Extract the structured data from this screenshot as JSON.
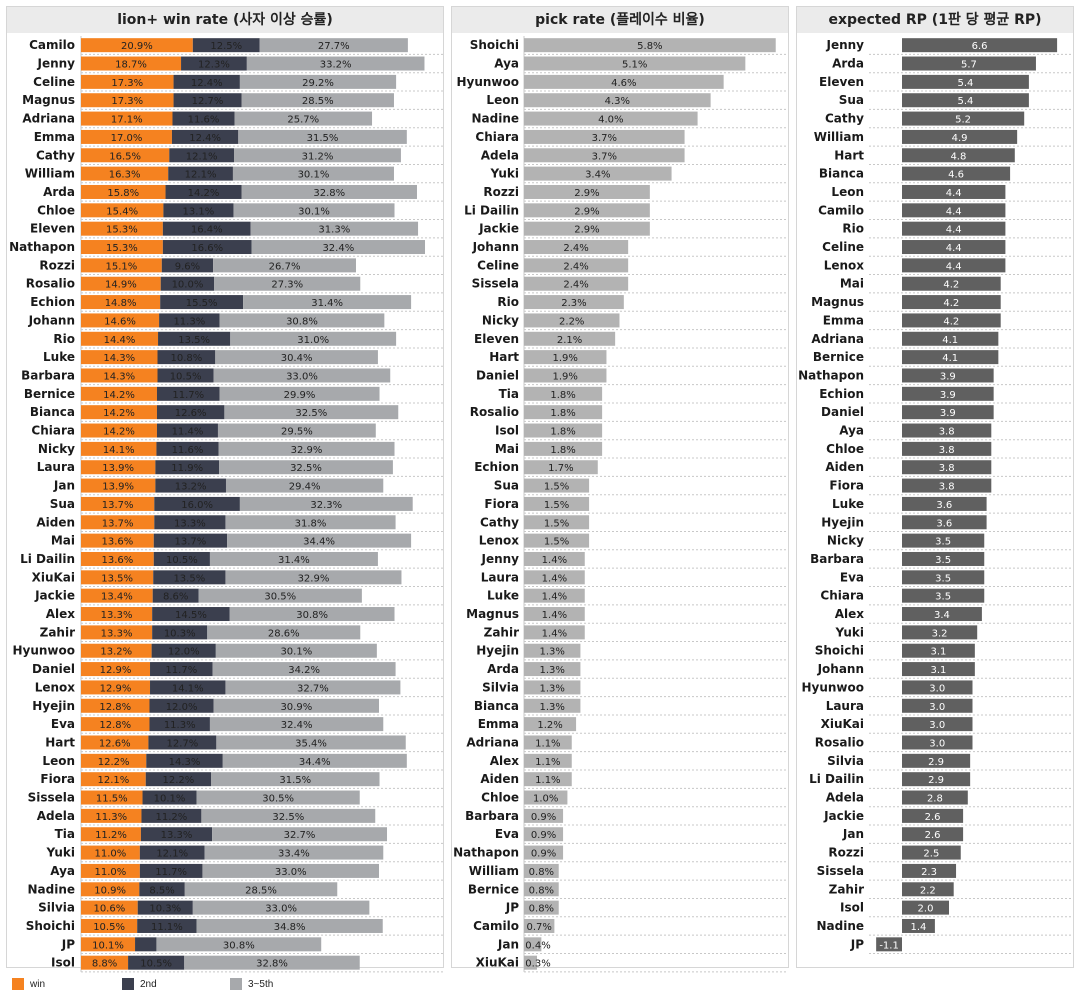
{
  "colors": {
    "win": "#f58220",
    "second": "#3b3f4e",
    "third": "#a7a9ac",
    "pick": "#b3b3b3",
    "rp": "#606060"
  },
  "legend": [
    {
      "label": "win",
      "color": "#f58220"
    },
    {
      "label": "2nd",
      "color": "#3b3f4e"
    },
    {
      "label": "3~5th",
      "color": "#a7a9ac"
    }
  ],
  "chart_data": [
    {
      "type": "bar",
      "stacked": true,
      "orientation": "horizontal",
      "title": "lion+ win rate (사자 이상 승률)",
      "series_names": [
        "win",
        "2nd",
        "3~5th"
      ],
      "rows": [
        {
          "name": "Camilo",
          "win": "20.9%",
          "second": "12.5%",
          "third": "27.7%"
        },
        {
          "name": "Jenny",
          "win": "18.7%",
          "second": "12.3%",
          "third": "33.2%"
        },
        {
          "name": "Celine",
          "win": "17.3%",
          "second": "12.4%",
          "third": "29.2%"
        },
        {
          "name": "Magnus",
          "win": "17.3%",
          "second": "12.7%",
          "third": "28.5%"
        },
        {
          "name": "Adriana",
          "win": "17.1%",
          "second": "11.6%",
          "third": "25.7%"
        },
        {
          "name": "Emma",
          "win": "17.0%",
          "second": "12.4%",
          "third": "31.5%"
        },
        {
          "name": "Cathy",
          "win": "16.5%",
          "second": "12.1%",
          "third": "31.2%"
        },
        {
          "name": "William",
          "win": "16.3%",
          "second": "12.1%",
          "third": "30.1%"
        },
        {
          "name": "Arda",
          "win": "15.8%",
          "second": "14.2%",
          "third": "32.8%"
        },
        {
          "name": "Chloe",
          "win": "15.4%",
          "second": "13.1%",
          "third": "30.1%"
        },
        {
          "name": "Eleven",
          "win": "15.3%",
          "second": "16.4%",
          "third": "31.3%"
        },
        {
          "name": "Nathapon",
          "win": "15.3%",
          "second": "16.6%",
          "third": "32.4%"
        },
        {
          "name": "Rozzi",
          "win": "15.1%",
          "second": "9.6%",
          "third": "26.7%"
        },
        {
          "name": "Rosalio",
          "win": "14.9%",
          "second": "10.0%",
          "third": "27.3%"
        },
        {
          "name": "Echion",
          "win": "14.8%",
          "second": "15.5%",
          "third": "31.4%"
        },
        {
          "name": "Johann",
          "win": "14.6%",
          "second": "11.3%",
          "third": "30.8%"
        },
        {
          "name": "Rio",
          "win": "14.4%",
          "second": "13.5%",
          "third": "31.0%"
        },
        {
          "name": "Luke",
          "win": "14.3%",
          "second": "10.8%",
          "third": "30.4%"
        },
        {
          "name": "Barbara",
          "win": "14.3%",
          "second": "10.5%",
          "third": "33.0%"
        },
        {
          "name": "Bernice",
          "win": "14.2%",
          "second": "11.7%",
          "third": "29.9%"
        },
        {
          "name": "Bianca",
          "win": "14.2%",
          "second": "12.6%",
          "third": "32.5%"
        },
        {
          "name": "Chiara",
          "win": "14.2%",
          "second": "11.4%",
          "third": "29.5%"
        },
        {
          "name": "Nicky",
          "win": "14.1%",
          "second": "11.6%",
          "third": "32.9%"
        },
        {
          "name": "Laura",
          "win": "13.9%",
          "second": "11.9%",
          "third": "32.5%"
        },
        {
          "name": "Jan",
          "win": "13.9%",
          "second": "13.2%",
          "third": "29.4%"
        },
        {
          "name": "Sua",
          "win": "13.7%",
          "second": "16.0%",
          "third": "32.3%"
        },
        {
          "name": "Aiden",
          "win": "13.7%",
          "second": "13.3%",
          "third": "31.8%"
        },
        {
          "name": "Mai",
          "win": "13.6%",
          "second": "13.7%",
          "third": "34.4%"
        },
        {
          "name": "Li Dailin",
          "win": "13.6%",
          "second": "10.5%",
          "third": "31.4%"
        },
        {
          "name": "XiuKai",
          "win": "13.5%",
          "second": "13.5%",
          "third": "32.9%"
        },
        {
          "name": "Jackie",
          "win": "13.4%",
          "second": "8.6%",
          "third": "30.5%"
        },
        {
          "name": "Alex",
          "win": "13.3%",
          "second": "14.5%",
          "third": "30.8%"
        },
        {
          "name": "Zahir",
          "win": "13.3%",
          "second": "10.3%",
          "third": "28.6%"
        },
        {
          "name": "Hyunwoo",
          "win": "13.2%",
          "second": "12.0%",
          "third": "30.1%"
        },
        {
          "name": "Daniel",
          "win": "12.9%",
          "second": "11.7%",
          "third": "34.2%"
        },
        {
          "name": "Lenox",
          "win": "12.9%",
          "second": "14.1%",
          "third": "32.7%"
        },
        {
          "name": "Hyejin",
          "win": "12.8%",
          "second": "12.0%",
          "third": "30.9%"
        },
        {
          "name": "Eva",
          "win": "12.8%",
          "second": "11.3%",
          "third": "32.4%"
        },
        {
          "name": "Hart",
          "win": "12.6%",
          "second": "12.7%",
          "third": "35.4%"
        },
        {
          "name": "Leon",
          "win": "12.2%",
          "second": "14.3%",
          "third": "34.4%"
        },
        {
          "name": "Fiora",
          "win": "12.1%",
          "second": "12.2%",
          "third": "31.5%"
        },
        {
          "name": "Sissela",
          "win": "11.5%",
          "second": "10.1%",
          "third": "30.5%"
        },
        {
          "name": "Adela",
          "win": "11.3%",
          "second": "11.2%",
          "third": "32.5%"
        },
        {
          "name": "Tia",
          "win": "11.2%",
          "second": "13.3%",
          "third": "32.7%"
        },
        {
          "name": "Yuki",
          "win": "11.0%",
          "second": "12.1%",
          "third": "33.4%"
        },
        {
          "name": "Aya",
          "win": "11.0%",
          "second": "11.7%",
          "third": "33.0%"
        },
        {
          "name": "Nadine",
          "win": "10.9%",
          "second": "8.5%",
          "third": "28.5%"
        },
        {
          "name": "Silvia",
          "win": "10.6%",
          "second": "10.3%",
          "third": "33.0%"
        },
        {
          "name": "Shoichi",
          "win": "10.5%",
          "second": "11.1%",
          "third": "34.8%"
        },
        {
          "name": "JP",
          "win": "10.1%",
          "second": "",
          "third": "30.8%"
        },
        {
          "name": "Isol",
          "win": "8.8%",
          "second": "10.5%",
          "third": "32.8%"
        }
      ],
      "second_values": {
        "JP": 4.0
      }
    },
    {
      "type": "bar",
      "orientation": "horizontal",
      "title": "pick rate (플레이수 비율)",
      "rows": [
        {
          "name": "Shoichi",
          "value": "5.8%"
        },
        {
          "name": "Aya",
          "value": "5.1%"
        },
        {
          "name": "Hyunwoo",
          "value": "4.6%"
        },
        {
          "name": "Leon",
          "value": "4.3%"
        },
        {
          "name": "Nadine",
          "value": "4.0%"
        },
        {
          "name": "Chiara",
          "value": "3.7%"
        },
        {
          "name": "Adela",
          "value": "3.7%"
        },
        {
          "name": "Yuki",
          "value": "3.4%"
        },
        {
          "name": "Rozzi",
          "value": "2.9%"
        },
        {
          "name": "Li Dailin",
          "value": "2.9%"
        },
        {
          "name": "Jackie",
          "value": "2.9%"
        },
        {
          "name": "Johann",
          "value": "2.4%"
        },
        {
          "name": "Celine",
          "value": "2.4%"
        },
        {
          "name": "Sissela",
          "value": "2.4%"
        },
        {
          "name": "Rio",
          "value": "2.3%"
        },
        {
          "name": "Nicky",
          "value": "2.2%"
        },
        {
          "name": "Eleven",
          "value": "2.1%"
        },
        {
          "name": "Hart",
          "value": "1.9%"
        },
        {
          "name": "Daniel",
          "value": "1.9%"
        },
        {
          "name": "Tia",
          "value": "1.8%"
        },
        {
          "name": "Rosalio",
          "value": "1.8%"
        },
        {
          "name": "Isol",
          "value": "1.8%"
        },
        {
          "name": "Mai",
          "value": "1.8%"
        },
        {
          "name": "Echion",
          "value": "1.7%"
        },
        {
          "name": "Sua",
          "value": "1.5%"
        },
        {
          "name": "Fiora",
          "value": "1.5%"
        },
        {
          "name": "Cathy",
          "value": "1.5%"
        },
        {
          "name": "Lenox",
          "value": "1.5%"
        },
        {
          "name": "Jenny",
          "value": "1.4%"
        },
        {
          "name": "Laura",
          "value": "1.4%"
        },
        {
          "name": "Luke",
          "value": "1.4%"
        },
        {
          "name": "Magnus",
          "value": "1.4%"
        },
        {
          "name": "Zahir",
          "value": "1.4%"
        },
        {
          "name": "Hyejin",
          "value": "1.3%"
        },
        {
          "name": "Arda",
          "value": "1.3%"
        },
        {
          "name": "Silvia",
          "value": "1.3%"
        },
        {
          "name": "Bianca",
          "value": "1.3%"
        },
        {
          "name": "Emma",
          "value": "1.2%"
        },
        {
          "name": "Adriana",
          "value": "1.1%"
        },
        {
          "name": "Alex",
          "value": "1.1%"
        },
        {
          "name": "Aiden",
          "value": "1.1%"
        },
        {
          "name": "Chloe",
          "value": "1.0%"
        },
        {
          "name": "Barbara",
          "value": "0.9%"
        },
        {
          "name": "Eva",
          "value": "0.9%"
        },
        {
          "name": "Nathapon",
          "value": "0.9%"
        },
        {
          "name": "William",
          "value": "0.8%"
        },
        {
          "name": "Bernice",
          "value": "0.8%"
        },
        {
          "name": "JP",
          "value": "0.8%"
        },
        {
          "name": "Camilo",
          "value": "0.7%"
        },
        {
          "name": "Jan",
          "value": "0.4%"
        },
        {
          "name": "XiuKai",
          "value": "0.3%"
        }
      ]
    },
    {
      "type": "bar",
      "orientation": "horizontal",
      "title": "expected RP (1판 당 평균 RP)",
      "rows": [
        {
          "name": "Jenny",
          "value": "6.6"
        },
        {
          "name": "Arda",
          "value": "5.7"
        },
        {
          "name": "Eleven",
          "value": "5.4"
        },
        {
          "name": "Sua",
          "value": "5.4"
        },
        {
          "name": "Cathy",
          "value": "5.2"
        },
        {
          "name": "William",
          "value": "4.9"
        },
        {
          "name": "Hart",
          "value": "4.8"
        },
        {
          "name": "Bianca",
          "value": "4.6"
        },
        {
          "name": "Leon",
          "value": "4.4"
        },
        {
          "name": "Camilo",
          "value": "4.4"
        },
        {
          "name": "Rio",
          "value": "4.4"
        },
        {
          "name": "Celine",
          "value": "4.4"
        },
        {
          "name": "Lenox",
          "value": "4.4"
        },
        {
          "name": "Mai",
          "value": "4.2"
        },
        {
          "name": "Magnus",
          "value": "4.2"
        },
        {
          "name": "Emma",
          "value": "4.2"
        },
        {
          "name": "Adriana",
          "value": "4.1"
        },
        {
          "name": "Bernice",
          "value": "4.1"
        },
        {
          "name": "Nathapon",
          "value": "3.9"
        },
        {
          "name": "Echion",
          "value": "3.9"
        },
        {
          "name": "Daniel",
          "value": "3.9"
        },
        {
          "name": "Aya",
          "value": "3.8"
        },
        {
          "name": "Chloe",
          "value": "3.8"
        },
        {
          "name": "Aiden",
          "value": "3.8"
        },
        {
          "name": "Fiora",
          "value": "3.8"
        },
        {
          "name": "Luke",
          "value": "3.6"
        },
        {
          "name": "Hyejin",
          "value": "3.6"
        },
        {
          "name": "Nicky",
          "value": "3.5"
        },
        {
          "name": "Barbara",
          "value": "3.5"
        },
        {
          "name": "Eva",
          "value": "3.5"
        },
        {
          "name": "Chiara",
          "value": "3.5"
        },
        {
          "name": "Alex",
          "value": "3.4"
        },
        {
          "name": "Yuki",
          "value": "3.2"
        },
        {
          "name": "Shoichi",
          "value": "3.1"
        },
        {
          "name": "Johann",
          "value": "3.1"
        },
        {
          "name": "Hyunwoo",
          "value": "3.0"
        },
        {
          "name": "Laura",
          "value": "3.0"
        },
        {
          "name": "XiuKai",
          "value": "3.0"
        },
        {
          "name": "Rosalio",
          "value": "3.0"
        },
        {
          "name": "Silvia",
          "value": "2.9"
        },
        {
          "name": "Li Dailin",
          "value": "2.9"
        },
        {
          "name": "Adela",
          "value": "2.8"
        },
        {
          "name": "Jackie",
          "value": "2.6"
        },
        {
          "name": "Jan",
          "value": "2.6"
        },
        {
          "name": "Rozzi",
          "value": "2.5"
        },
        {
          "name": "Sissela",
          "value": "2.3"
        },
        {
          "name": "Zahir",
          "value": "2.2"
        },
        {
          "name": "Isol",
          "value": "2.0"
        },
        {
          "name": "Nadine",
          "value": "1.4"
        },
        {
          "name": "JP",
          "value": "-1.1"
        }
      ]
    }
  ]
}
